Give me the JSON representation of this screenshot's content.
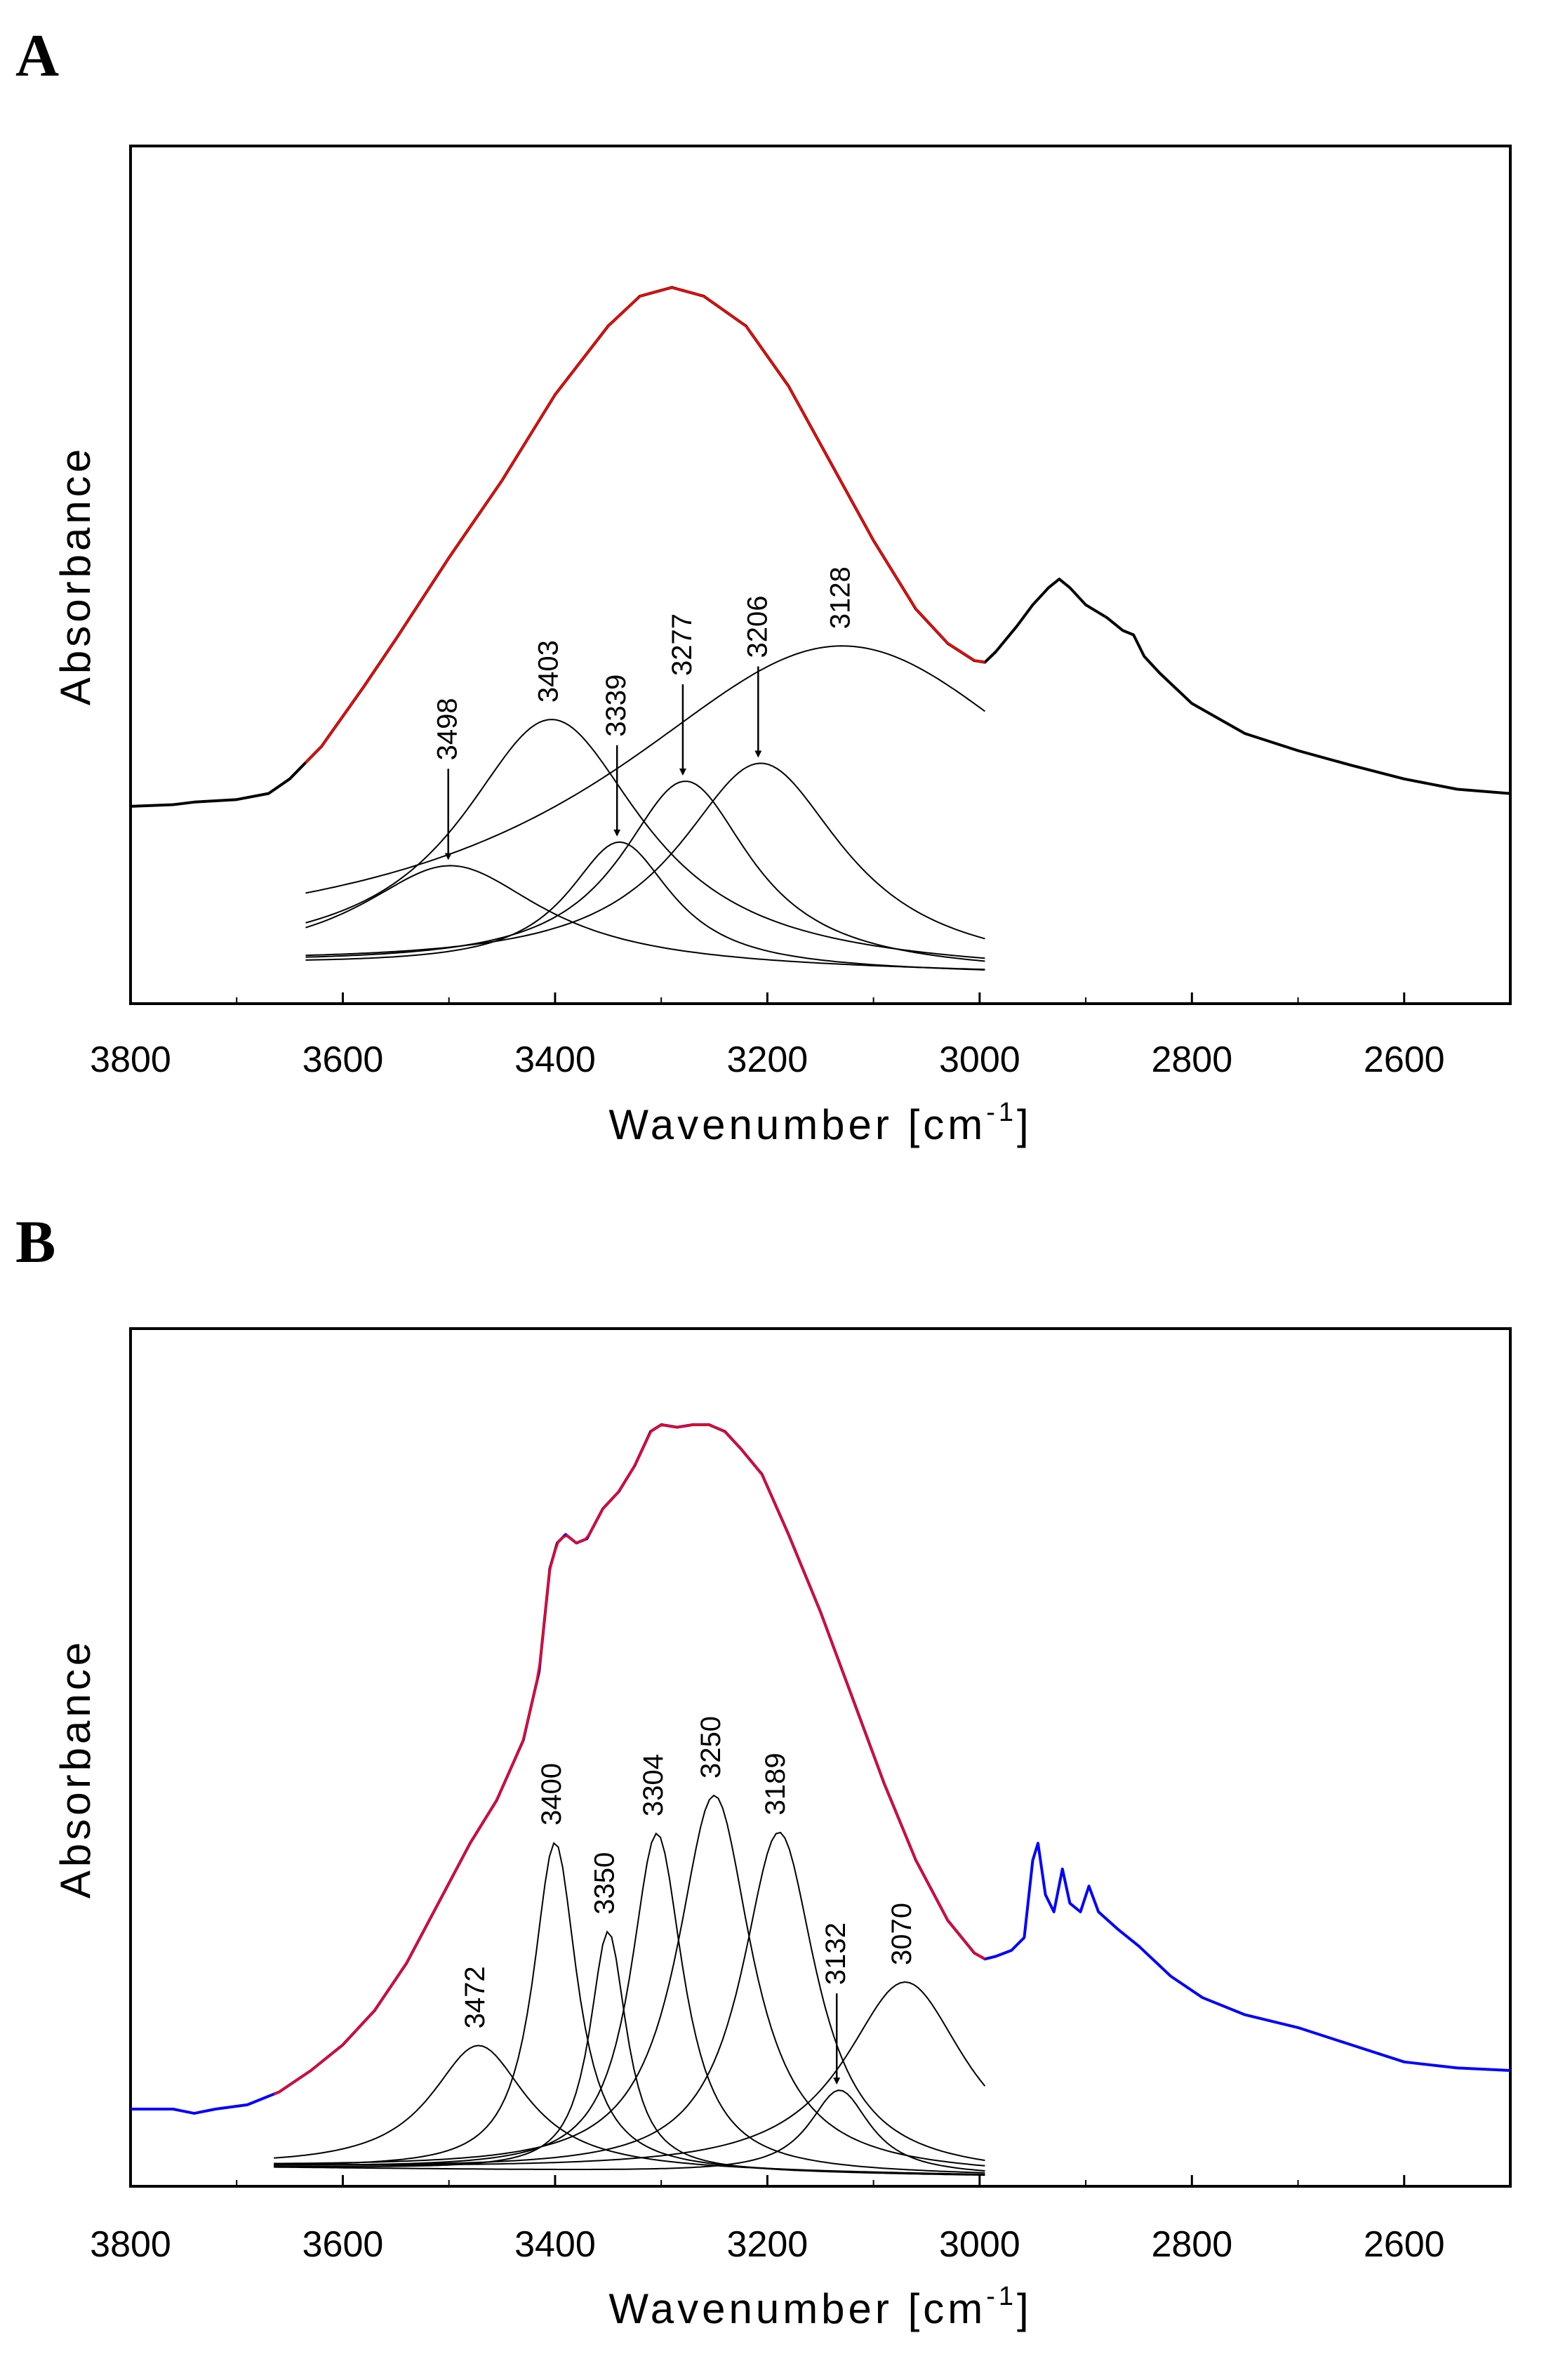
{
  "chart_data": [
    {
      "panel": "A",
      "type": "line",
      "xlabel": "Wavenumber [cm",
      "xlabel_sup": "-1",
      "xlabel_suffix": "]",
      "ylabel": "Absorbance",
      "xlim": [
        3800,
        2500
      ],
      "ylim": [
        0,
        1
      ],
      "xticks": [
        "3800",
        "3600",
        "3400",
        "3200",
        "3000",
        "2800",
        "2600"
      ],
      "xtick_values": [
        3800,
        3600,
        3400,
        3200,
        3000,
        2800,
        2600
      ],
      "spectrum_color": "#000000",
      "fit_color": "#ff0000",
      "fit_range": [
        3635,
        2995
      ],
      "spectrum": [
        [
          3800,
          0.23
        ],
        [
          3760,
          0.232
        ],
        [
          3740,
          0.235
        ],
        [
          3700,
          0.238
        ],
        [
          3670,
          0.245
        ],
        [
          3650,
          0.262
        ],
        [
          3620,
          0.3
        ],
        [
          3580,
          0.37
        ],
        [
          3550,
          0.425
        ],
        [
          3500,
          0.52
        ],
        [
          3450,
          0.61
        ],
        [
          3400,
          0.71
        ],
        [
          3350,
          0.79
        ],
        [
          3320,
          0.825
        ],
        [
          3290,
          0.835
        ],
        [
          3260,
          0.825
        ],
        [
          3220,
          0.79
        ],
        [
          3180,
          0.72
        ],
        [
          3140,
          0.63
        ],
        [
          3100,
          0.54
        ],
        [
          3060,
          0.46
        ],
        [
          3030,
          0.42
        ],
        [
          3005,
          0.4
        ],
        [
          2995,
          0.398
        ],
        [
          2985,
          0.41
        ],
        [
          2965,
          0.44
        ],
        [
          2950,
          0.465
        ],
        [
          2935,
          0.485
        ],
        [
          2925,
          0.495
        ],
        [
          2915,
          0.485
        ],
        [
          2900,
          0.465
        ],
        [
          2880,
          0.45
        ],
        [
          2865,
          0.435
        ],
        [
          2855,
          0.43
        ],
        [
          2845,
          0.405
        ],
        [
          2830,
          0.385
        ],
        [
          2800,
          0.35
        ],
        [
          2750,
          0.315
        ],
        [
          2700,
          0.295
        ],
        [
          2650,
          0.278
        ],
        [
          2600,
          0.262
        ],
        [
          2550,
          0.25
        ],
        [
          2500,
          0.245
        ]
      ],
      "fit_baseline": [
        [
          3635,
          0.045
        ],
        [
          2995,
          0.035
        ]
      ],
      "components": [
        {
          "center": 3498,
          "height": 0.118,
          "fwhm": 210
        },
        {
          "center": 3403,
          "height": 0.29,
          "fwhm": 210
        },
        {
          "center": 3339,
          "height": 0.148,
          "fwhm": 120
        },
        {
          "center": 3277,
          "height": 0.22,
          "fwhm": 150
        },
        {
          "center": 3206,
          "height": 0.242,
          "fwhm": 190
        },
        {
          "center": 3128,
          "height": 0.38,
          "fwhm": 540
        }
      ],
      "annotations": [
        {
          "text": "3498",
          "arrow": true
        },
        {
          "text": "3403",
          "arrow": false
        },
        {
          "text": "3339",
          "arrow": true
        },
        {
          "text": "3277",
          "arrow": true
        },
        {
          "text": "3206",
          "arrow": true
        },
        {
          "text": "3128",
          "arrow": false
        }
      ]
    },
    {
      "panel": "B",
      "type": "line",
      "xlabel": "Wavenumber [cm",
      "xlabel_sup": "-1",
      "xlabel_suffix": "]",
      "ylabel": "Absorbance",
      "xlim": [
        3800,
        2500
      ],
      "ylim": [
        0,
        1
      ],
      "xticks": [
        "3800",
        "3600",
        "3400",
        "3200",
        "3000",
        "2800",
        "2600"
      ],
      "xtick_values": [
        3800,
        3600,
        3400,
        3200,
        3000,
        2800,
        2600
      ],
      "spectrum_color": "#0000ff",
      "fit_color": "#ff0000",
      "fit_range": [
        3665,
        2995
      ],
      "spectrum": [
        [
          3800,
          0.09
        ],
        [
          3760,
          0.09
        ],
        [
          3740,
          0.085
        ],
        [
          3720,
          0.09
        ],
        [
          3690,
          0.095
        ],
        [
          3660,
          0.11
        ],
        [
          3630,
          0.135
        ],
        [
          3600,
          0.165
        ],
        [
          3570,
          0.205
        ],
        [
          3540,
          0.26
        ],
        [
          3510,
          0.33
        ],
        [
          3480,
          0.4
        ],
        [
          3455,
          0.45
        ],
        [
          3430,
          0.52
        ],
        [
          3415,
          0.6
        ],
        [
          3405,
          0.72
        ],
        [
          3398,
          0.75
        ],
        [
          3390,
          0.76
        ],
        [
          3380,
          0.75
        ],
        [
          3370,
          0.755
        ],
        [
          3355,
          0.79
        ],
        [
          3340,
          0.81
        ],
        [
          3325,
          0.84
        ],
        [
          3310,
          0.88
        ],
        [
          3300,
          0.888
        ],
        [
          3285,
          0.885
        ],
        [
          3270,
          0.888
        ],
        [
          3255,
          0.888
        ],
        [
          3240,
          0.88
        ],
        [
          3225,
          0.86
        ],
        [
          3205,
          0.83
        ],
        [
          3180,
          0.76
        ],
        [
          3150,
          0.67
        ],
        [
          3120,
          0.57
        ],
        [
          3090,
          0.47
        ],
        [
          3060,
          0.38
        ],
        [
          3030,
          0.31
        ],
        [
          3005,
          0.272
        ],
        [
          2995,
          0.265
        ],
        [
          2985,
          0.268
        ],
        [
          2970,
          0.275
        ],
        [
          2958,
          0.29
        ],
        [
          2950,
          0.38
        ],
        [
          2945,
          0.4
        ],
        [
          2938,
          0.34
        ],
        [
          2930,
          0.32
        ],
        [
          2922,
          0.37
        ],
        [
          2915,
          0.33
        ],
        [
          2905,
          0.32
        ],
        [
          2897,
          0.35
        ],
        [
          2888,
          0.32
        ],
        [
          2870,
          0.3
        ],
        [
          2850,
          0.28
        ],
        [
          2820,
          0.245
        ],
        [
          2790,
          0.22
        ],
        [
          2750,
          0.2
        ],
        [
          2700,
          0.185
        ],
        [
          2650,
          0.165
        ],
        [
          2600,
          0.145
        ],
        [
          2550,
          0.138
        ],
        [
          2500,
          0.135
        ]
      ],
      "fit_baseline": [
        [
          3665,
          0.022
        ],
        [
          2995,
          0.012
        ]
      ],
      "components": [
        {
          "center": 3472,
          "height": 0.145,
          "fwhm": 110
        },
        {
          "center": 3400,
          "height": 0.383,
          "fwhm": 50
        },
        {
          "center": 3350,
          "height": 0.28,
          "fwhm": 42
        },
        {
          "center": 3304,
          "height": 0.395,
          "fwhm": 60
        },
        {
          "center": 3250,
          "height": 0.44,
          "fwhm": 85
        },
        {
          "center": 3189,
          "height": 0.398,
          "fwhm": 85
        },
        {
          "center": 3132,
          "height": 0.098,
          "fwhm": 70
        },
        {
          "center": 3070,
          "height": 0.225,
          "fwhm": 140
        }
      ],
      "annotations": [
        {
          "text": "3472",
          "arrow": false
        },
        {
          "text": "3400",
          "arrow": false
        },
        {
          "text": "3350",
          "arrow": false
        },
        {
          "text": "3304",
          "arrow": false
        },
        {
          "text": "3250",
          "arrow": false
        },
        {
          "text": "3189",
          "arrow": false
        },
        {
          "text": "3132",
          "arrow": true
        },
        {
          "text": "3070",
          "arrow": false
        }
      ]
    }
  ]
}
